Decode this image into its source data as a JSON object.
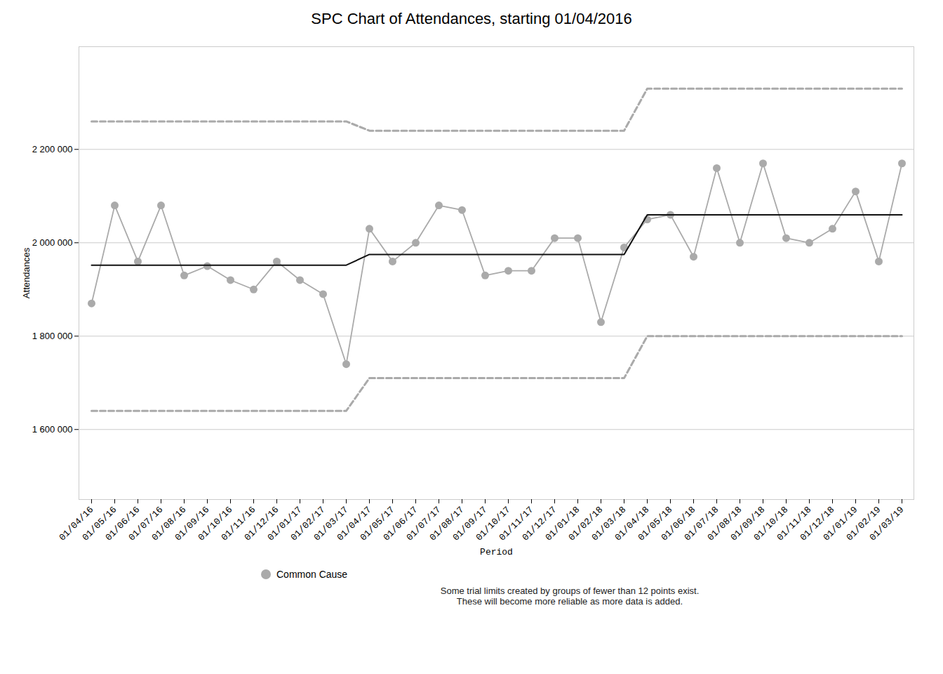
{
  "chart_data": {
    "type": "line",
    "title": "SPC Chart of Attendances, starting 01/04/2016",
    "xlabel": "Period",
    "ylabel": "Attendances",
    "caption": "Some trial limits created by groups of fewer than 12 points exist.\nThese will become more reliable as more data is added.",
    "categories": [
      "01/04/16",
      "01/05/16",
      "01/06/16",
      "01/07/16",
      "01/08/16",
      "01/09/16",
      "01/10/16",
      "01/11/16",
      "01/12/16",
      "01/01/17",
      "01/02/17",
      "01/03/17",
      "01/04/17",
      "01/05/17",
      "01/06/17",
      "01/07/17",
      "01/08/17",
      "01/09/17",
      "01/10/17",
      "01/11/17",
      "01/12/17",
      "01/01/18",
      "01/02/18",
      "01/03/18",
      "01/04/18",
      "01/05/18",
      "01/06/18",
      "01/07/18",
      "01/08/18",
      "01/09/18",
      "01/10/18",
      "01/11/18",
      "01/12/18",
      "01/01/19",
      "01/02/19",
      "01/03/19"
    ],
    "series": [
      {
        "name": "Common Cause",
        "color": "#aaaaaa",
        "marker": "circle",
        "values": [
          1870000,
          2080000,
          1960000,
          2080000,
          1930000,
          1950000,
          1920000,
          1900000,
          1960000,
          1920000,
          1890000,
          1740000,
          2030000,
          1960000,
          2000000,
          2080000,
          2070000,
          1930000,
          1940000,
          1940000,
          2010000,
          2010000,
          1830000,
          1990000,
          2050000,
          2060000,
          1970000,
          2160000,
          2000000,
          2170000,
          2010000,
          2000000,
          2030000,
          2110000,
          1960000,
          2170000
        ]
      }
    ],
    "mean": {
      "color": "#111111",
      "line_style": "solid",
      "sections": [
        {
          "x": [
            "01/04/16",
            "01/03/17"
          ],
          "values": [
            1952000,
            1952000
          ]
        },
        {
          "x": [
            "01/04/17",
            "01/03/18"
          ],
          "values": [
            1975000,
            1975000
          ]
        },
        {
          "x": [
            "01/04/18",
            "01/03/19"
          ],
          "values": [
            2060000,
            2060000
          ]
        }
      ]
    },
    "upl": {
      "color": "#aaaaaa",
      "line_style": "dashed",
      "sections": [
        {
          "x": [
            "01/04/16",
            "01/03/17"
          ],
          "values": [
            2260000,
            2260000
          ]
        },
        {
          "x": [
            "01/04/17",
            "01/03/18"
          ],
          "values": [
            2240000,
            2240000
          ]
        },
        {
          "x": [
            "01/04/18",
            "01/03/19"
          ],
          "values": [
            2330000,
            2330000
          ]
        }
      ]
    },
    "lpl": {
      "color": "#aaaaaa",
      "line_style": "dashed",
      "sections": [
        {
          "x": [
            "01/04/16",
            "01/03/17"
          ],
          "values": [
            1640000,
            1640000
          ]
        },
        {
          "x": [
            "01/04/17",
            "01/03/18"
          ],
          "values": [
            1710000,
            1710000
          ]
        },
        {
          "x": [
            "01/04/18",
            "01/03/19"
          ],
          "values": [
            1800000,
            1800000
          ]
        }
      ]
    },
    "ylim": [
      1450000,
      2420000
    ],
    "yticks": [
      {
        "value": 1600000,
        "label": "1 600 000"
      },
      {
        "value": 1800000,
        "label": "1 800 000"
      },
      {
        "value": 2000000,
        "label": "2 000 000"
      },
      {
        "value": 2200000,
        "label": "2 200 000"
      }
    ],
    "grid": true
  }
}
